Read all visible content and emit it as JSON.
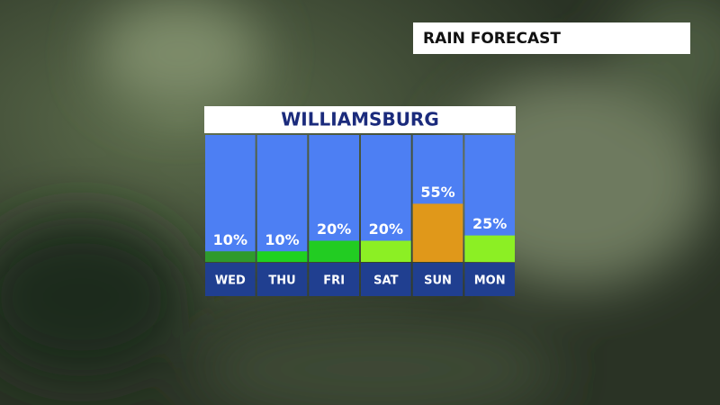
{
  "header": "RAIN FORECAST",
  "chart_data": {
    "type": "bar",
    "title": "WILLIAMSBURG",
    "categories": [
      "WED",
      "THU",
      "FRI",
      "SAT",
      "SUN",
      "MON"
    ],
    "values": [
      10,
      10,
      20,
      20,
      55,
      25
    ],
    "value_labels": [
      "10%",
      "10%",
      "20%",
      "20%",
      "55%",
      "25%"
    ],
    "colors": [
      "#2f9a2c",
      "#1fd21f",
      "#22cc22",
      "#8cef24",
      "#e0981a",
      "#8cef24"
    ],
    "ylim": [
      0,
      120
    ]
  }
}
